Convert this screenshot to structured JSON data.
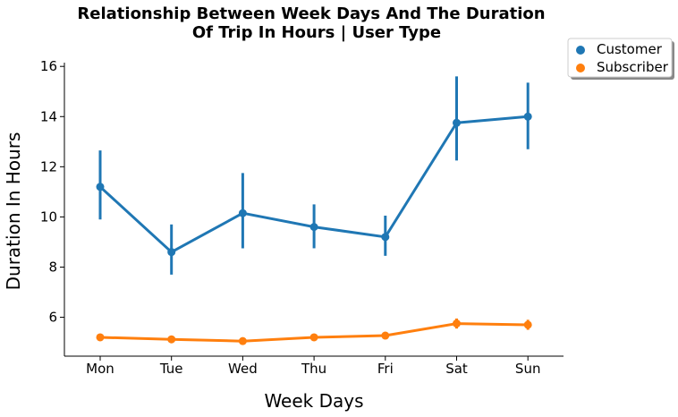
{
  "chart_data": {
    "type": "line",
    "title_line1": "Relationship Between Week Days And The Duration",
    "title_line2": "Of Trip In Hours | User Type",
    "xlabel": "Week Days",
    "ylabel": "Duration In Hours",
    "categories": [
      "Mon",
      "Tue",
      "Wed",
      "Thu",
      "Fri",
      "Sat",
      "Sun"
    ],
    "ylim": [
      4.45,
      16.15
    ],
    "yticks": [
      6,
      8,
      10,
      12,
      14,
      16
    ],
    "grid": false,
    "legend_position": "outside-top-right",
    "series": [
      {
        "name": "Customer",
        "color": "#1f77b4",
        "values": [
          11.2,
          8.6,
          10.15,
          9.6,
          9.2,
          13.75,
          14.0
        ],
        "ci_low": [
          9.9,
          7.7,
          8.75,
          8.75,
          8.45,
          12.25,
          12.7
        ],
        "ci_high": [
          12.65,
          9.7,
          11.75,
          10.5,
          10.05,
          15.6,
          15.35
        ]
      },
      {
        "name": "Subscriber",
        "color": "#ff7f0e",
        "values": [
          5.2,
          5.12,
          5.05,
          5.2,
          5.27,
          5.75,
          5.7
        ],
        "ci_low": [
          5.1,
          5.05,
          5.0,
          5.12,
          5.15,
          5.55,
          5.5
        ],
        "ci_high": [
          5.3,
          5.2,
          5.1,
          5.28,
          5.4,
          5.95,
          5.9
        ]
      }
    ]
  }
}
